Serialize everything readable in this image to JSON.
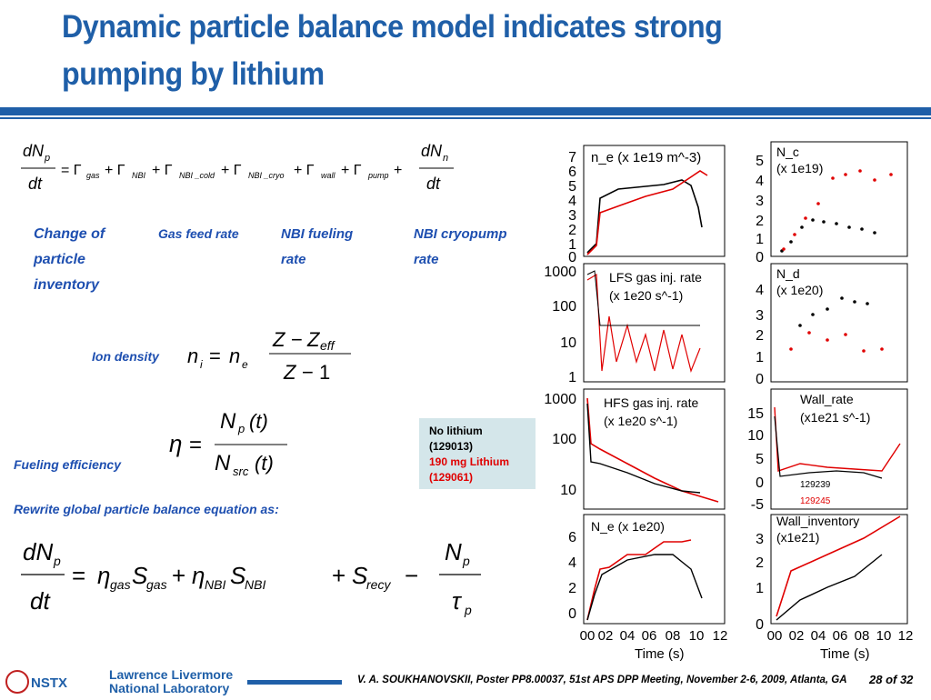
{
  "title": "Dynamic particle balance model indicates strong pumping by lithium",
  "labels": {
    "change": "Change of particle inventory",
    "gasfeed": "Gas feed rate",
    "nbi_fueling": "NBI fueling rate",
    "nbi_cryo": "NBI cryopump rate",
    "ion_density": "Ion density",
    "fueling_eff": "Fueling efficiency",
    "rewrite": "Rewrite global particle balance equation as:"
  },
  "legend": {
    "line1": "No lithium",
    "line2": "(129013)",
    "line3": "190 mg Lithium",
    "line4": "(129061)"
  },
  "panels": {
    "ne": "n_e (x 1e19 m^-3)",
    "nc": "N_c\n(x 1e19)",
    "lfs": "LFS gas inj. rate\n(x 1e20 s^-1)",
    "nd": "N_d\n(x 1e20)",
    "hfs": "HFS gas inj. rate\n(x 1e20 s^-1)",
    "wall_rate": "Wall_rate\n(x1e21 s^-1)",
    "Ne": "N_e (x 1e20)",
    "wall_inv": "Wall_inventory\n(x1e21)",
    "shot_a": "129239",
    "shot_b": "129245",
    "xaxis": "Time (s)"
  },
  "footer": {
    "logo1": "NSTX",
    "logo2a": "Lawrence Livermore",
    "logo2b": "National Laboratory",
    "citation": "V. A. SOUKHANOVSKII, Poster PP8.00037, 51st APS DPP Meeting, November 2-6, 2009, Atlanta, GA",
    "page": "28 of 32"
  },
  "colors": {
    "accent": "#1f5fa8",
    "red": "#e00000",
    "label": "#1e4fb0"
  }
}
